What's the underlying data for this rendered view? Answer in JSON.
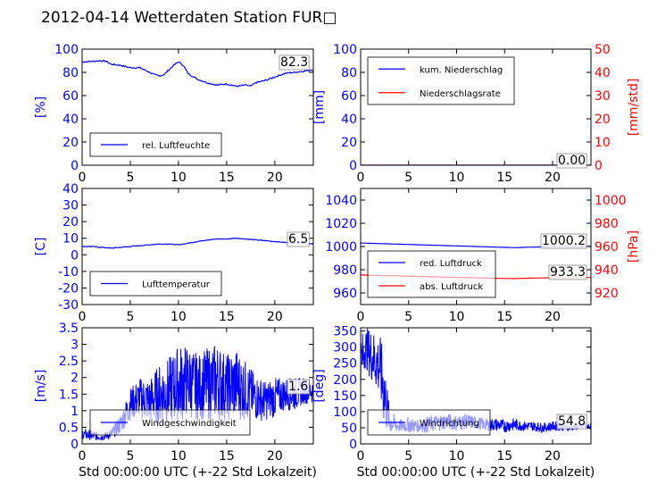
{
  "title": "2012-04-14 Wetterdaten Station FUR□",
  "colors": {
    "left_axis": "#0000ff",
    "right_axis": "#ff0000",
    "series_blue": "#0000ff",
    "series_red": "#ff0000"
  },
  "chart_data": [
    {
      "id": "humidity",
      "type": "line",
      "xlabel": "",
      "ylabel": "[%]",
      "xlim": [
        0,
        24
      ],
      "ylim": [
        0,
        100
      ],
      "xticks": [
        0,
        5,
        10,
        15,
        20
      ],
      "yticks": [
        0,
        20,
        40,
        60,
        80,
        100
      ],
      "legend": {
        "placement": "lower-left"
      },
      "last_value": "82.3",
      "series": [
        {
          "name": "rel. Luftfeuchte",
          "color": "#0000ff",
          "x": [
            0,
            1,
            2,
            2.5,
            3,
            4,
            5,
            6,
            7,
            7.5,
            8,
            8.5,
            9,
            9.5,
            10,
            10.5,
            11,
            12,
            13,
            14,
            15,
            16,
            17,
            17.5,
            18,
            19,
            20,
            21,
            22,
            23,
            24
          ],
          "y": [
            89,
            89.5,
            90,
            89.5,
            87,
            86,
            84,
            84,
            80,
            78,
            77,
            78,
            82,
            86,
            89,
            86,
            79,
            74,
            71,
            69,
            70,
            68,
            69,
            68,
            71,
            73,
            76,
            79,
            80,
            81,
            82.3
          ]
        }
      ]
    },
    {
      "id": "precip",
      "type": "line",
      "xlabel": "",
      "ylabel": "[mm]",
      "ylabel_right": "[mm/std]",
      "xlim": [
        0,
        24
      ],
      "ylim": [
        0,
        100
      ],
      "ylim_right": [
        0,
        50
      ],
      "xticks": [
        0,
        5,
        10,
        15,
        20
      ],
      "yticks": [
        0,
        20,
        40,
        60,
        80,
        100
      ],
      "yticks_right": [
        0,
        10,
        20,
        30,
        40,
        50
      ],
      "legend": {
        "placement": "upper-left"
      },
      "last_value": "0.00",
      "series": [
        {
          "name": "kum. Niederschlag",
          "color": "#0000ff",
          "axis": "left",
          "x": [
            0,
            24
          ],
          "y": [
            0,
            0
          ]
        },
        {
          "name": "Niederschlagsrate",
          "color": "#ff0000",
          "axis": "right",
          "x": [
            0,
            24
          ],
          "y": [
            0,
            0
          ]
        }
      ]
    },
    {
      "id": "temperature",
      "type": "line",
      "xlabel": "",
      "ylabel": "[C]",
      "xlim": [
        0,
        24
      ],
      "ylim": [
        -30,
        40
      ],
      "xticks": [
        0,
        5,
        10,
        15,
        20
      ],
      "yticks": [
        -30,
        -20,
        -10,
        0,
        10,
        20,
        30,
        40
      ],
      "legend": {
        "placement": "lower-left"
      },
      "last_value": "6.5",
      "series": [
        {
          "name": "Lufttemperatur",
          "color": "#0000ff",
          "x": [
            0,
            1,
            2,
            3,
            4,
            5,
            6,
            7,
            8,
            9,
            10,
            11,
            12,
            13,
            14,
            15,
            16,
            17,
            18,
            19,
            20,
            21,
            22,
            23,
            24
          ],
          "y": [
            5,
            5,
            4.5,
            4,
            4.5,
            5,
            5.5,
            6,
            6.5,
            6.5,
            6,
            7,
            8,
            9,
            9.5,
            9.5,
            10,
            9.5,
            9,
            8.5,
            8,
            7.5,
            7,
            6.8,
            6.5
          ]
        }
      ]
    },
    {
      "id": "pressure",
      "type": "line",
      "xlabel": "",
      "ylabel": "",
      "ylabel_right": "[hPa]",
      "xlim": [
        0,
        24
      ],
      "ylim": [
        950,
        1050
      ],
      "ylim_right": [
        910,
        1010
      ],
      "xticks": [
        0,
        5,
        10,
        15,
        20
      ],
      "yticks": [
        960,
        980,
        1000,
        1020,
        1040
      ],
      "yticks_right": [
        920,
        940,
        960,
        980,
        1000
      ],
      "legend": {
        "placement": "lower-left"
      },
      "last_value": "1000.2",
      "last_value_right": "933.3",
      "series": [
        {
          "name": "red. Luftdruck",
          "color": "#0000ff",
          "axis": "left",
          "x": [
            0,
            2,
            4,
            6,
            8,
            10,
            12,
            14,
            16,
            18,
            20,
            22,
            24
          ],
          "y": [
            1003,
            1002.5,
            1002,
            1001.5,
            1001,
            1000.5,
            1000,
            999.5,
            999,
            999.5,
            1000,
            1000.1,
            1000.2
          ]
        },
        {
          "name": "abs. Luftdruck",
          "color": "#ff0000",
          "axis": "right",
          "x": [
            0,
            2,
            4,
            6,
            8,
            10,
            12,
            14,
            16,
            18,
            20,
            22,
            24
          ],
          "y": [
            935.5,
            935,
            934.6,
            934.2,
            933.8,
            933.4,
            933,
            932.6,
            932.4,
            932.8,
            933.1,
            933.2,
            933.3
          ]
        }
      ]
    },
    {
      "id": "wind_speed",
      "type": "line",
      "xlabel": "Std 00:00:00 UTC (+-22 Std Lokalzeit)",
      "ylabel": "[m/s]",
      "xlim": [
        0,
        24
      ],
      "ylim": [
        0,
        3.5
      ],
      "xticks": [
        0,
        5,
        10,
        15,
        20
      ],
      "yticks": [
        0,
        0.5,
        1,
        1.5,
        2,
        2.5,
        3,
        3.5
      ],
      "legend": {
        "placement": "lower-left"
      },
      "last_value": "1.6",
      "series": [
        {
          "name": "Windgeschwindigkeit",
          "color": "#0000ff",
          "x": [
            0,
            1,
            2,
            3,
            4,
            5,
            6,
            7,
            8,
            9,
            10,
            11,
            12,
            13,
            14,
            15,
            16,
            17,
            18,
            19,
            20,
            21,
            22,
            23,
            24
          ],
          "y": [
            0.3,
            0.25,
            0.2,
            0.3,
            0.6,
            1.2,
            1.4,
            1.3,
            1.5,
            1.6,
            1.8,
            1.9,
            1.7,
            1.8,
            1.9,
            1.7,
            1.8,
            1.6,
            1.4,
            1.3,
            1.4,
            1.5,
            1.5,
            1.6,
            1.6
          ],
          "spread": [
            0.15,
            0.15,
            0.1,
            0.15,
            0.3,
            0.5,
            0.6,
            0.7,
            0.9,
            1.0,
            1.2,
            1.1,
            1.0,
            1.1,
            1.2,
            1.0,
            1.1,
            0.9,
            0.7,
            0.6,
            0.6,
            0.5,
            0.5,
            0.4,
            0.4
          ]
        }
      ]
    },
    {
      "id": "wind_direction",
      "type": "line",
      "xlabel": "Std 00:00:00 UTC (+-22 Std Lokalzeit)",
      "ylabel": "[deg]",
      "xlim": [
        0,
        24
      ],
      "ylim": [
        0,
        360
      ],
      "xticks": [
        0,
        5,
        10,
        15,
        20
      ],
      "yticks": [
        0,
        50,
        100,
        150,
        200,
        250,
        300,
        350
      ],
      "legend": {
        "placement": "lower-left"
      },
      "last_value": "54.8",
      "series": [
        {
          "name": "Windrichtung",
          "color": "#0000ff",
          "x": [
            0,
            0.5,
            1,
            1.5,
            2,
            2.5,
            3,
            4,
            5,
            6,
            7,
            8,
            9,
            10,
            11,
            12,
            13,
            14,
            15,
            16,
            17,
            18,
            19,
            20,
            21,
            22,
            23,
            24
          ],
          "y": [
            250,
            300,
            280,
            260,
            240,
            150,
            70,
            55,
            60,
            55,
            60,
            65,
            70,
            65,
            70,
            65,
            60,
            60,
            55,
            60,
            55,
            55,
            50,
            55,
            55,
            50,
            55,
            54.8
          ],
          "spread": [
            90,
            60,
            80,
            90,
            100,
            120,
            40,
            20,
            25,
            20,
            25,
            25,
            25,
            25,
            25,
            20,
            20,
            20,
            20,
            20,
            15,
            15,
            15,
            15,
            15,
            10,
            10,
            10
          ]
        }
      ]
    }
  ]
}
